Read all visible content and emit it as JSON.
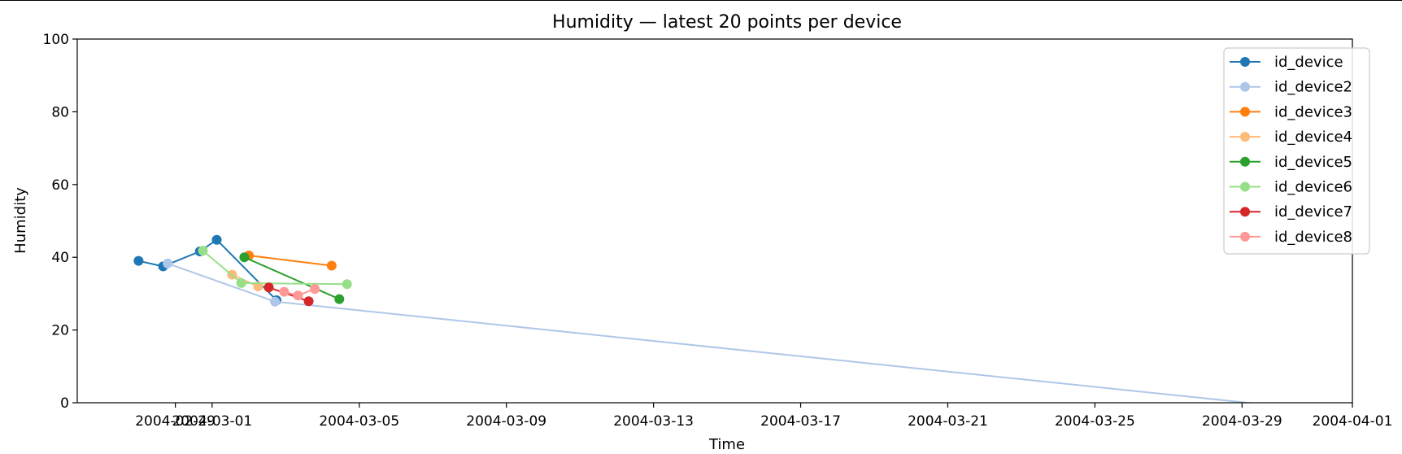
{
  "chart_data": {
    "type": "line",
    "title": "Humidity — latest 20 points per device",
    "xlabel": "Time",
    "ylabel": "Humidity",
    "x_is_date": true,
    "xlim": [
      "2004-02-26T08:00",
      "2004-04-01T00:00"
    ],
    "ylim": [
      0,
      100
    ],
    "grid": false,
    "legend_position": "top-right",
    "xticks": [
      "2004-02-29",
      "2004-03-01",
      "2004-03-05",
      "2004-03-09",
      "2004-03-13",
      "2004-03-17",
      "2004-03-21",
      "2004-03-25",
      "2004-03-29",
      "2004-04-01"
    ],
    "yticks": [
      0,
      20,
      40,
      60,
      80,
      100
    ],
    "series": [
      {
        "name": "id_device",
        "color": "#1f77b4",
        "points": [
          {
            "x": "2004-02-28T00:00",
            "y": 39.0
          },
          {
            "x": "2004-02-28T16:00",
            "y": 37.5
          },
          {
            "x": "2004-02-29T16:00",
            "y": 41.6
          },
          {
            "x": "2004-03-01T03:00",
            "y": 44.8
          },
          {
            "x": "2004-03-02T18:00",
            "y": 28.2
          }
        ]
      },
      {
        "name": "id_device2",
        "color": "#aec7e8",
        "points": [
          {
            "x": "2004-02-28T19:00",
            "y": 38.3
          },
          {
            "x": "2004-03-02T17:00",
            "y": 27.8
          },
          {
            "x": "2004-04-01T00:00",
            "y": -3.0
          }
        ]
      },
      {
        "name": "id_device3",
        "color": "#ff7f0e",
        "points": [
          {
            "x": "2004-03-02T00:00",
            "y": 40.5
          },
          {
            "x": "2004-03-04T06:00",
            "y": 37.7
          }
        ]
      },
      {
        "name": "id_device4",
        "color": "#ffbb78",
        "points": [
          {
            "x": "2004-03-01T13:00",
            "y": 35.2
          },
          {
            "x": "2004-03-02T06:00",
            "y": 32.0
          }
        ]
      },
      {
        "name": "id_device5",
        "color": "#2ca02c",
        "points": [
          {
            "x": "2004-03-01T21:00",
            "y": 40.0
          },
          {
            "x": "2004-03-04T11:00",
            "y": 28.5
          }
        ]
      },
      {
        "name": "id_device6",
        "color": "#98df8a",
        "points": [
          {
            "x": "2004-02-29T18:00",
            "y": 41.8
          },
          {
            "x": "2004-03-01T19:00",
            "y": 32.9
          },
          {
            "x": "2004-03-04T16:00",
            "y": 32.6
          }
        ]
      },
      {
        "name": "id_device7",
        "color": "#d62728",
        "points": [
          {
            "x": "2004-03-02T13:00",
            "y": 31.7
          },
          {
            "x": "2004-03-03T15:00",
            "y": 27.9
          }
        ]
      },
      {
        "name": "id_device8",
        "color": "#ff9896",
        "points": [
          {
            "x": "2004-03-02T23:00",
            "y": 30.5
          },
          {
            "x": "2004-03-03T08:00",
            "y": 29.5
          },
          {
            "x": "2004-03-03T19:00",
            "y": 31.3
          }
        ]
      }
    ]
  }
}
